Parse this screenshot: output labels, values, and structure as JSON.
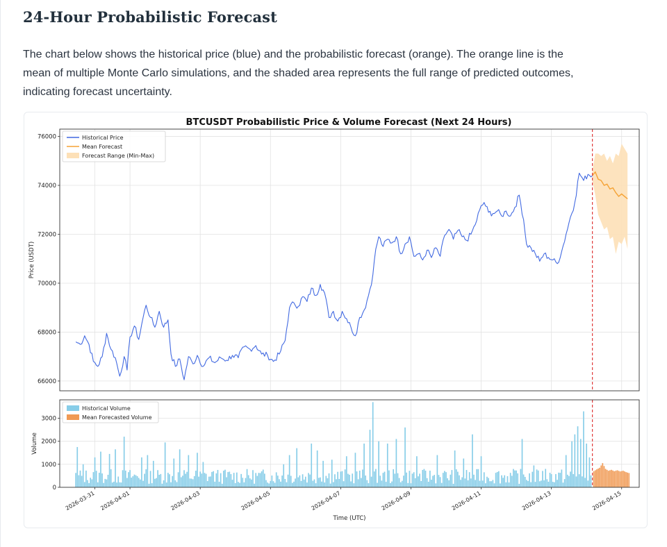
{
  "header": {
    "title": "24-Hour Probabilistic Forecast",
    "description": "The chart below shows the historical price (blue) and the probabilistic forecast (orange). The orange line is the mean of multiple Monte Carlo simulations, and the shaded area represents the full range of predicted outcomes, indicating forecast uncertainty."
  },
  "colors": {
    "historical_price": "#4169e1",
    "mean_forecast": "#f5a233",
    "forecast_range": "#fde0b7",
    "historical_volume": "#87cde8",
    "forecast_volume": "#f09a54",
    "forecast_start_line": "#e03b3b"
  },
  "chart_data": {
    "type": "line",
    "title": "BTCUSDT Probabilistic Price & Volume Forecast (Next 24 Hours)",
    "xlabel": "Time (UTC)",
    "x_tick_labels": [
      "2026-03-31",
      "2026-04-01",
      "2026-04-03",
      "2026-04-05",
      "2026-04-07",
      "2026-04-09",
      "2026-04-11",
      "2026-04-13",
      "2026-04-15"
    ],
    "x_range": [
      "2026-03-30T00:00",
      "2026-04-15T12:00"
    ],
    "forecast_start": "2026-04-14T04:00",
    "grid": true,
    "price_panel": {
      "ylabel": "Price (USDT)",
      "ylim": [
        65600,
        76300
      ],
      "yticks": [
        66000,
        68000,
        70000,
        72000,
        74000,
        76000
      ],
      "legend": "top-left",
      "legend_entries": [
        "Historical Price",
        "Mean Forecast",
        "Forecast Range (Min-Max)"
      ],
      "historical_price": [
        [
          "2026-03-30T11:00",
          67600
        ],
        [
          "2026-03-30T14:00",
          67500
        ],
        [
          "2026-03-30T17:00",
          67850
        ],
        [
          "2026-03-30T20:00",
          67500
        ],
        [
          "2026-03-30T23:00",
          66800
        ],
        [
          "2026-03-31T02:00",
          66600
        ],
        [
          "2026-03-31T05:00",
          67000
        ],
        [
          "2026-03-31T08:00",
          67950
        ],
        [
          "2026-03-31T11:00",
          67300
        ],
        [
          "2026-03-31T14:00",
          66950
        ],
        [
          "2026-03-31T17:00",
          66200
        ],
        [
          "2026-03-31T20:00",
          67000
        ],
        [
          "2026-03-31T22:00",
          66450
        ],
        [
          "2026-04-01T00:00",
          67800
        ],
        [
          "2026-04-01T03:00",
          68250
        ],
        [
          "2026-04-01T06:00",
          67700
        ],
        [
          "2026-04-01T09:00",
          68600
        ],
        [
          "2026-04-01T11:00",
          69100
        ],
        [
          "2026-04-01T14:00",
          68600
        ],
        [
          "2026-04-01T17:00",
          68200
        ],
        [
          "2026-04-01T20:00",
          68850
        ],
        [
          "2026-04-01T23:00",
          68200
        ],
        [
          "2026-04-02T02:00",
          68500
        ],
        [
          "2026-04-02T04:00",
          67100
        ],
        [
          "2026-04-02T07:00",
          66600
        ],
        [
          "2026-04-02T10:00",
          66900
        ],
        [
          "2026-04-02T13:00",
          66050
        ],
        [
          "2026-04-02T16:00",
          67000
        ],
        [
          "2026-04-02T19:00",
          66700
        ],
        [
          "2026-04-02T22:00",
          67050
        ],
        [
          "2026-04-03T02:00",
          66600
        ],
        [
          "2026-04-03T06:00",
          66950
        ],
        [
          "2026-04-03T10:00",
          66750
        ],
        [
          "2026-04-03T14:00",
          66950
        ],
        [
          "2026-04-03T18:00",
          66850
        ],
        [
          "2026-04-03T22:00",
          67050
        ],
        [
          "2026-04-04T02:00",
          66950
        ],
        [
          "2026-04-04T06:00",
          67400
        ],
        [
          "2026-04-04T10:00",
          67300
        ],
        [
          "2026-04-04T14:00",
          67450
        ],
        [
          "2026-04-04T18:00",
          67100
        ],
        [
          "2026-04-04T22:00",
          67050
        ],
        [
          "2026-04-05T02:00",
          66800
        ],
        [
          "2026-04-05T06:00",
          67100
        ],
        [
          "2026-04-05T10:00",
          67650
        ],
        [
          "2026-04-05T13:00",
          69000
        ],
        [
          "2026-04-05T16:00",
          69200
        ],
        [
          "2026-04-05T19:00",
          69050
        ],
        [
          "2026-04-05T22:00",
          69450
        ],
        [
          "2026-04-06T01:00",
          69250
        ],
        [
          "2026-04-06T04:00",
          69800
        ],
        [
          "2026-04-06T07:00",
          69500
        ],
        [
          "2026-04-06T10:00",
          69950
        ],
        [
          "2026-04-06T13:00",
          69600
        ],
        [
          "2026-04-06T16:00",
          68600
        ],
        [
          "2026-04-06T19:00",
          68850
        ],
        [
          "2026-04-06T22:00",
          68450
        ],
        [
          "2026-04-07T01:00",
          68850
        ],
        [
          "2026-04-07T04:00",
          68550
        ],
        [
          "2026-04-07T07:00",
          68200
        ],
        [
          "2026-04-07T10:00",
          67850
        ],
        [
          "2026-04-07T13:00",
          68600
        ],
        [
          "2026-04-07T16:00",
          68900
        ],
        [
          "2026-04-07T19:00",
          69500
        ],
        [
          "2026-04-07T22:00",
          70350
        ],
        [
          "2026-04-08T00:00",
          71400
        ],
        [
          "2026-04-08T02:00",
          71900
        ],
        [
          "2026-04-08T05:00",
          71500
        ],
        [
          "2026-04-08T08:00",
          71800
        ],
        [
          "2026-04-08T11:00",
          71650
        ],
        [
          "2026-04-08T14:00",
          71900
        ],
        [
          "2026-04-08T17:00",
          71200
        ],
        [
          "2026-04-08T20:00",
          71600
        ],
        [
          "2026-04-08T23:00",
          71900
        ],
        [
          "2026-04-09T02:00",
          71100
        ],
        [
          "2026-04-09T05:00",
          71200
        ],
        [
          "2026-04-09T08:00",
          70950
        ],
        [
          "2026-04-09T11:00",
          71350
        ],
        [
          "2026-04-09T14:00",
          71050
        ],
        [
          "2026-04-09T17:00",
          71450
        ],
        [
          "2026-04-09T20:00",
          71100
        ],
        [
          "2026-04-09T23:00",
          71950
        ],
        [
          "2026-04-10T02:00",
          72200
        ],
        [
          "2026-04-10T05:00",
          71800
        ],
        [
          "2026-04-10T08:00",
          72150
        ],
        [
          "2026-04-10T11:00",
          71900
        ],
        [
          "2026-04-10T14:00",
          71750
        ],
        [
          "2026-04-10T17:00",
          72000
        ],
        [
          "2026-04-10T20:00",
          72400
        ],
        [
          "2026-04-10T23:00",
          73000
        ],
        [
          "2026-04-11T02:00",
          73300
        ],
        [
          "2026-04-11T05:00",
          72900
        ],
        [
          "2026-04-11T08:00",
          72850
        ],
        [
          "2026-04-11T11:00",
          72950
        ],
        [
          "2026-04-11T14:00",
          72750
        ],
        [
          "2026-04-11T17:00",
          72950
        ],
        [
          "2026-04-11T20:00",
          72750
        ],
        [
          "2026-04-11T23:00",
          73100
        ],
        [
          "2026-04-12T02:00",
          73600
        ],
        [
          "2026-04-12T05:00",
          72600
        ],
        [
          "2026-04-12T07:00",
          71600
        ],
        [
          "2026-04-12T10:00",
          71450
        ],
        [
          "2026-04-12T13:00",
          71200
        ],
        [
          "2026-04-12T16:00",
          70900
        ],
        [
          "2026-04-12T19:00",
          71200
        ],
        [
          "2026-04-12T22:00",
          71050
        ],
        [
          "2026-04-13T01:00",
          70950
        ],
        [
          "2026-04-13T04:00",
          70800
        ],
        [
          "2026-04-13T07:00",
          71300
        ],
        [
          "2026-04-13T10:00",
          72000
        ],
        [
          "2026-04-13T13:00",
          72700
        ],
        [
          "2026-04-13T16:00",
          73300
        ],
        [
          "2026-04-13T19:00",
          74500
        ],
        [
          "2026-04-13T22:00",
          74200
        ],
        [
          "2026-04-14T01:00",
          74450
        ],
        [
          "2026-04-14T04:00",
          74400
        ]
      ],
      "mean_forecast": [
        [
          "2026-04-14T04:00",
          74400
        ],
        [
          "2026-04-14T06:00",
          74550
        ],
        [
          "2026-04-14T08:00",
          74250
        ],
        [
          "2026-04-14T10:00",
          74200
        ],
        [
          "2026-04-14T12:00",
          74000
        ],
        [
          "2026-04-14T14:00",
          74050
        ],
        [
          "2026-04-14T16:00",
          73850
        ],
        [
          "2026-04-14T18:00",
          73900
        ],
        [
          "2026-04-14T20:00",
          73700
        ],
        [
          "2026-04-14T22:00",
          73550
        ],
        [
          "2026-04-15T00:00",
          73650
        ],
        [
          "2026-04-15T02:00",
          73550
        ],
        [
          "2026-04-15T04:00",
          73450
        ]
      ],
      "forecast_range_min": [
        [
          "2026-04-14T04:00",
          74200
        ],
        [
          "2026-04-14T06:00",
          73600
        ],
        [
          "2026-04-14T08:00",
          72800
        ],
        [
          "2026-04-14T10:00",
          72500
        ],
        [
          "2026-04-14T12:00",
          72200
        ],
        [
          "2026-04-14T14:00",
          72300
        ],
        [
          "2026-04-14T16:00",
          71800
        ],
        [
          "2026-04-14T18:00",
          71900
        ],
        [
          "2026-04-14T20:00",
          71200
        ],
        [
          "2026-04-14T22:00",
          71700
        ],
        [
          "2026-04-15T00:00",
          71600
        ],
        [
          "2026-04-15T02:00",
          71900
        ],
        [
          "2026-04-15T04:00",
          71400
        ]
      ],
      "forecast_range_max": [
        [
          "2026-04-14T04:00",
          74600
        ],
        [
          "2026-04-14T06:00",
          75300
        ],
        [
          "2026-04-14T08:00",
          75300
        ],
        [
          "2026-04-14T10:00",
          75200
        ],
        [
          "2026-04-14T12:00",
          75300
        ],
        [
          "2026-04-14T14:00",
          75000
        ],
        [
          "2026-04-14T16:00",
          75200
        ],
        [
          "2026-04-14T18:00",
          74900
        ],
        [
          "2026-04-14T20:00",
          75300
        ],
        [
          "2026-04-14T22:00",
          75200
        ],
        [
          "2026-04-15T00:00",
          75700
        ],
        [
          "2026-04-15T02:00",
          75500
        ],
        [
          "2026-04-15T04:00",
          75300
        ]
      ]
    },
    "volume_panel": {
      "ylabel": "Volume",
      "ylim": [
        0,
        3800
      ],
      "yticks": [
        0,
        1000,
        2000,
        3000
      ],
      "legend": "top-left",
      "legend_entries": [
        "Historical Volume",
        "Mean Forecasted Volume"
      ],
      "historical_volume_spikes": [
        [
          "2026-03-30T12:00",
          1750
        ],
        [
          "2026-03-30T16:00",
          1000
        ],
        [
          "2026-03-31T00:00",
          1300
        ],
        [
          "2026-03-31T04:00",
          1550
        ],
        [
          "2026-03-31T10:00",
          1450
        ],
        [
          "2026-03-31T14:00",
          1650
        ],
        [
          "2026-03-31T20:00",
          2200
        ],
        [
          "2026-04-01T08:00",
          1300
        ],
        [
          "2026-04-01T12:00",
          1400
        ],
        [
          "2026-04-01T16:00",
          1150
        ],
        [
          "2026-04-02T00:00",
          1950
        ],
        [
          "2026-04-02T06:00",
          1250
        ],
        [
          "2026-04-02T10:00",
          1650
        ],
        [
          "2026-04-02T16:00",
          1400
        ],
        [
          "2026-04-02T22:00",
          1500
        ],
        [
          "2026-04-03T02:00",
          1100
        ],
        [
          "2026-04-03T09:00",
          700
        ],
        [
          "2026-04-05T09:00",
          1000
        ],
        [
          "2026-04-05T13:00",
          1400
        ],
        [
          "2026-04-05T18:00",
          1700
        ],
        [
          "2026-04-06T04:00",
          1900
        ],
        [
          "2026-04-06T08:00",
          1600
        ],
        [
          "2026-04-06T12:00",
          1150
        ],
        [
          "2026-04-06T18:00",
          1200
        ],
        [
          "2026-04-07T04:00",
          1350
        ],
        [
          "2026-04-07T10:00",
          1500
        ],
        [
          "2026-04-07T16:00",
          1900
        ],
        [
          "2026-04-07T20:00",
          2500
        ],
        [
          "2026-04-07T22:00",
          3700
        ],
        [
          "2026-04-08T02:00",
          2000
        ],
        [
          "2026-04-08T08:00",
          1900
        ],
        [
          "2026-04-08T14:00",
          2100
        ],
        [
          "2026-04-08T20:00",
          2600
        ],
        [
          "2026-04-09T04:00",
          1350
        ],
        [
          "2026-04-09T18:00",
          1400
        ],
        [
          "2026-04-10T06:00",
          1600
        ],
        [
          "2026-04-10T12:00",
          1250
        ],
        [
          "2026-04-10T18:00",
          2300
        ],
        [
          "2026-04-11T00:00",
          1350
        ],
        [
          "2026-04-11T12:00",
          700
        ],
        [
          "2026-04-12T04:00",
          2100
        ],
        [
          "2026-04-12T12:00",
          950
        ],
        [
          "2026-04-12T20:00",
          800
        ],
        [
          "2026-04-13T10:00",
          1400
        ],
        [
          "2026-04-13T14:00",
          2000
        ],
        [
          "2026-04-13T16:00",
          2300
        ],
        [
          "2026-04-13T18:00",
          2650
        ],
        [
          "2026-04-13T20:00",
          2100
        ],
        [
          "2026-04-13T22:00",
          3300
        ],
        [
          "2026-04-14T00:00",
          1900
        ],
        [
          "2026-04-14T02:00",
          1300
        ]
      ],
      "mean_forecast_volume": [
        [
          "2026-04-14T05:00",
          700
        ],
        [
          "2026-04-14T07:00",
          780
        ],
        [
          "2026-04-14T09:00",
          850
        ],
        [
          "2026-04-14T11:00",
          1050
        ],
        [
          "2026-04-14T13:00",
          800
        ],
        [
          "2026-04-14T15:00",
          720
        ],
        [
          "2026-04-14T17:00",
          760
        ],
        [
          "2026-04-14T19:00",
          700
        ],
        [
          "2026-04-14T21:00",
          740
        ],
        [
          "2026-04-14T23:00",
          690
        ],
        [
          "2026-04-15T01:00",
          720
        ],
        [
          "2026-04-15T03:00",
          660
        ],
        [
          "2026-04-15T05:00",
          620
        ]
      ]
    }
  }
}
